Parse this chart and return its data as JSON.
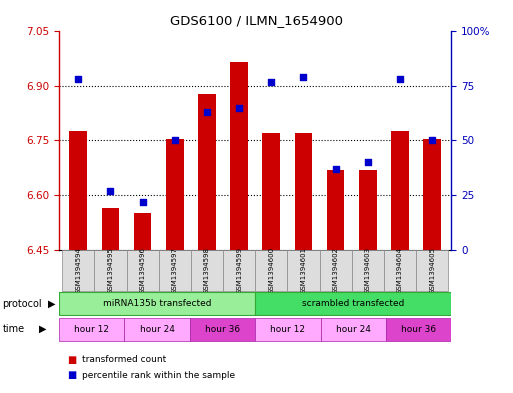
{
  "title": "GDS6100 / ILMN_1654900",
  "samples": [
    "GSM1394594",
    "GSM1394595",
    "GSM1394596",
    "GSM1394597",
    "GSM1394598",
    "GSM1394599",
    "GSM1394600",
    "GSM1394601",
    "GSM1394602",
    "GSM1394603",
    "GSM1394604",
    "GSM1394605"
  ],
  "red_values": [
    6.775,
    6.565,
    6.55,
    6.755,
    6.878,
    6.965,
    6.77,
    6.77,
    6.67,
    6.67,
    6.775,
    6.755
  ],
  "blue_values_pct": [
    78,
    27,
    22,
    50,
    63,
    65,
    77,
    79,
    37,
    40,
    78,
    50
  ],
  "ylim_left": [
    6.45,
    7.05
  ],
  "y_ticks_left": [
    6.45,
    6.6,
    6.75,
    6.9,
    7.05
  ],
  "y_ticks_right": [
    0,
    25,
    50,
    75,
    100
  ],
  "bar_bottom": 6.45,
  "bar_color": "#CC0000",
  "dot_color": "#0000CC",
  "label_color_left": "#CC0000",
  "label_color_right": "#0000BB",
  "grid_dotted_at": [
    6.6,
    6.75,
    6.9
  ],
  "protocol1_label": "miRNA135b transfected",
  "protocol2_label": "scrambled transfected",
  "protocol1_color": "#99EE99",
  "protocol2_color": "#44DD66",
  "time_groups": [
    {
      "label": "hour 12",
      "start": 0,
      "end": 2,
      "color": "#FFAAFF"
    },
    {
      "label": "hour 24",
      "start": 2,
      "end": 4,
      "color": "#FFAAFF"
    },
    {
      "label": "hour 36",
      "start": 4,
      "end": 6,
      "color": "#DD44CC"
    },
    {
      "label": "hour 12",
      "start": 6,
      "end": 8,
      "color": "#FFAAFF"
    },
    {
      "label": "hour 24",
      "start": 8,
      "end": 10,
      "color": "#FFAAFF"
    },
    {
      "label": "hour 36",
      "start": 10,
      "end": 12,
      "color": "#DD44CC"
    }
  ],
  "legend_red": "transformed count",
  "legend_blue": "percentile rank within the sample"
}
